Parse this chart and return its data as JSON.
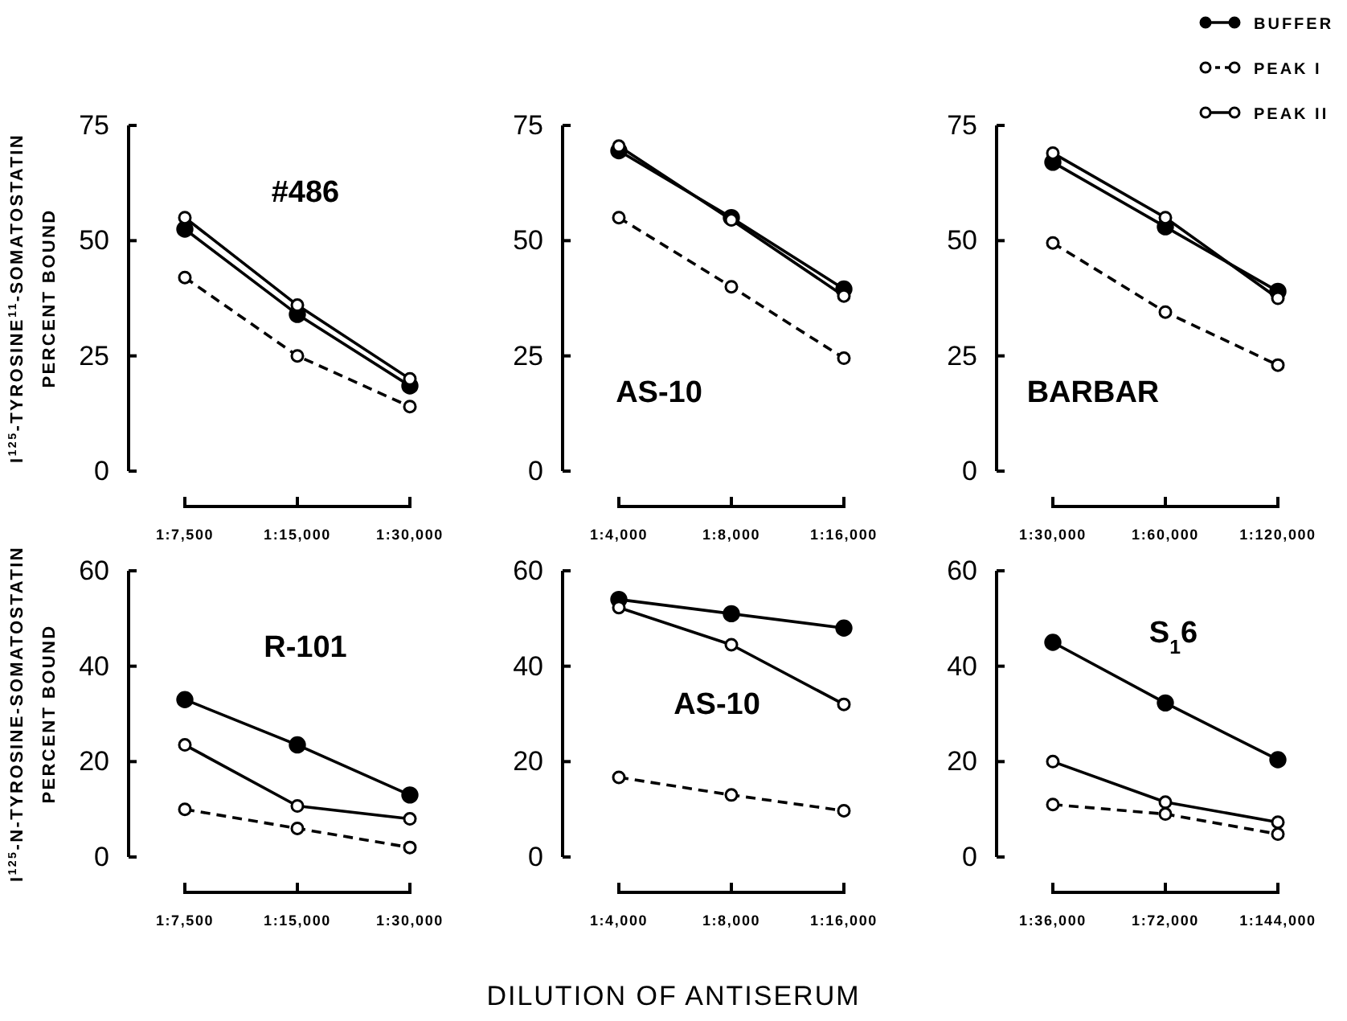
{
  "chart_data": [
    {
      "type": "line",
      "ylabel": "I$^{125}$-TYROSINE$^{11}$-SOMATOSTATIN\nPERCENT BOUND",
      "annotations": [
        "#486"
      ],
      "categories": [
        "1:7,500",
        "1:15,000",
        "1:30,000"
      ],
      "ylim": [
        0,
        75
      ],
      "yticks": [
        0,
        25,
        50,
        75
      ],
      "grid": false,
      "legend": false,
      "marker": "circle",
      "series": [
        {
          "color": "#000000",
          "line_style": "solid",
          "values": [
            52.5,
            34,
            18.5
          ]
        },
        {
          "color": "#000000",
          "line_style": "dashed",
          "values": [
            42,
            25,
            14
          ]
        },
        {
          "color": "#000000",
          "line_style": "solid",
          "values": [
            55,
            36,
            20
          ]
        }
      ]
    },
    {
      "type": "line",
      "annotations": [
        "AS-10"
      ],
      "categories": [
        "1:4,000",
        "1:8,000",
        "1:16,000"
      ],
      "ylim": [
        0,
        75
      ],
      "yticks": [
        0,
        25,
        50,
        75
      ],
      "grid": false,
      "legend": false,
      "marker": "circle",
      "series": [
        {
          "color": "#000000",
          "line_style": "solid",
          "values": [
            69.5,
            55,
            39.5
          ]
        },
        {
          "color": "#000000",
          "line_style": "dashed",
          "values": [
            55,
            40,
            24.5
          ]
        },
        {
          "color": "#000000",
          "line_style": "solid",
          "values": [
            70.5,
            54.5,
            38
          ]
        }
      ]
    },
    {
      "type": "line",
      "annotations": [
        "BARBAR"
      ],
      "categories": [
        "1:30,000",
        "1:60,000",
        "1:120,000"
      ],
      "ylim": [
        0,
        75
      ],
      "yticks": [
        0,
        25,
        50,
        75
      ],
      "grid": false,
      "legend": "top right",
      "marker": "circle",
      "series": [
        {
          "name": "BUFFER",
          "color": "#000000",
          "line_style": "solid",
          "values": [
            67,
            53,
            39
          ]
        },
        {
          "name": "PEAK I",
          "color": "#000000",
          "line_style": "dashed",
          "values": [
            49.5,
            34.5,
            23
          ]
        },
        {
          "name": "PEAK II",
          "color": "#000000",
          "line_style": "solid",
          "values": [
            69,
            55,
            37.5
          ]
        }
      ]
    },
    {
      "type": "line",
      "ylabel": "I$^{125}$-N-TYROSINE-SOMATOSTATIN\nPERCENT BOUND",
      "annotations": [
        "R-101"
      ],
      "categories": [
        "1:7,500",
        "1:15,000",
        "1:30,000"
      ],
      "ylim": [
        0,
        60
      ],
      "yticks": [
        0,
        20,
        40,
        60
      ],
      "grid": false,
      "legend": false,
      "marker": "circle",
      "series": [
        {
          "color": "#000000",
          "line_style": "solid",
          "values": [
            33,
            23.5,
            13
          ]
        },
        {
          "color": "#000000",
          "line_style": "dashed",
          "values": [
            10,
            6,
            2
          ]
        },
        {
          "color": "#000000",
          "line_style": "solid",
          "values": [
            23.5,
            10.7,
            8
          ]
        }
      ]
    },
    {
      "type": "line",
      "xlabel": "DILUTION OF ANTISERUM",
      "annotations": [
        "AS-10"
      ],
      "categories": [
        "1:4,000",
        "1:8,000",
        "1:16,000"
      ],
      "ylim": [
        0,
        60
      ],
      "yticks": [
        0,
        20,
        40,
        60
      ],
      "grid": false,
      "legend": false,
      "marker": "circle",
      "series": [
        {
          "color": "#000000",
          "line_style": "solid",
          "values": [
            54,
            51,
            48
          ]
        },
        {
          "color": "#000000",
          "line_style": "dashed",
          "values": [
            16.7,
            13,
            9.7
          ]
        },
        {
          "color": "#000000",
          "line_style": "solid",
          "values": [
            52.3,
            44.5,
            32
          ]
        }
      ]
    },
    {
      "type": "line",
      "annotations": [
        "S$_{1}$6"
      ],
      "categories": [
        "1:36,000",
        "1:72,000",
        "1:144,000"
      ],
      "ylim": [
        0,
        60
      ],
      "yticks": [
        0,
        20,
        40,
        60
      ],
      "grid": false,
      "legend": false,
      "marker": "circle",
      "series": [
        {
          "color": "#000000",
          "line_style": "solid",
          "values": [
            45,
            32.3,
            20.4
          ]
        },
        {
          "color": "#000000",
          "line_style": "dashed",
          "values": [
            11,
            9,
            4.8
          ]
        },
        {
          "color": "#000000",
          "line_style": "solid",
          "values": [
            20,
            11.5,
            7.3
          ]
        }
      ]
    }
  ]
}
